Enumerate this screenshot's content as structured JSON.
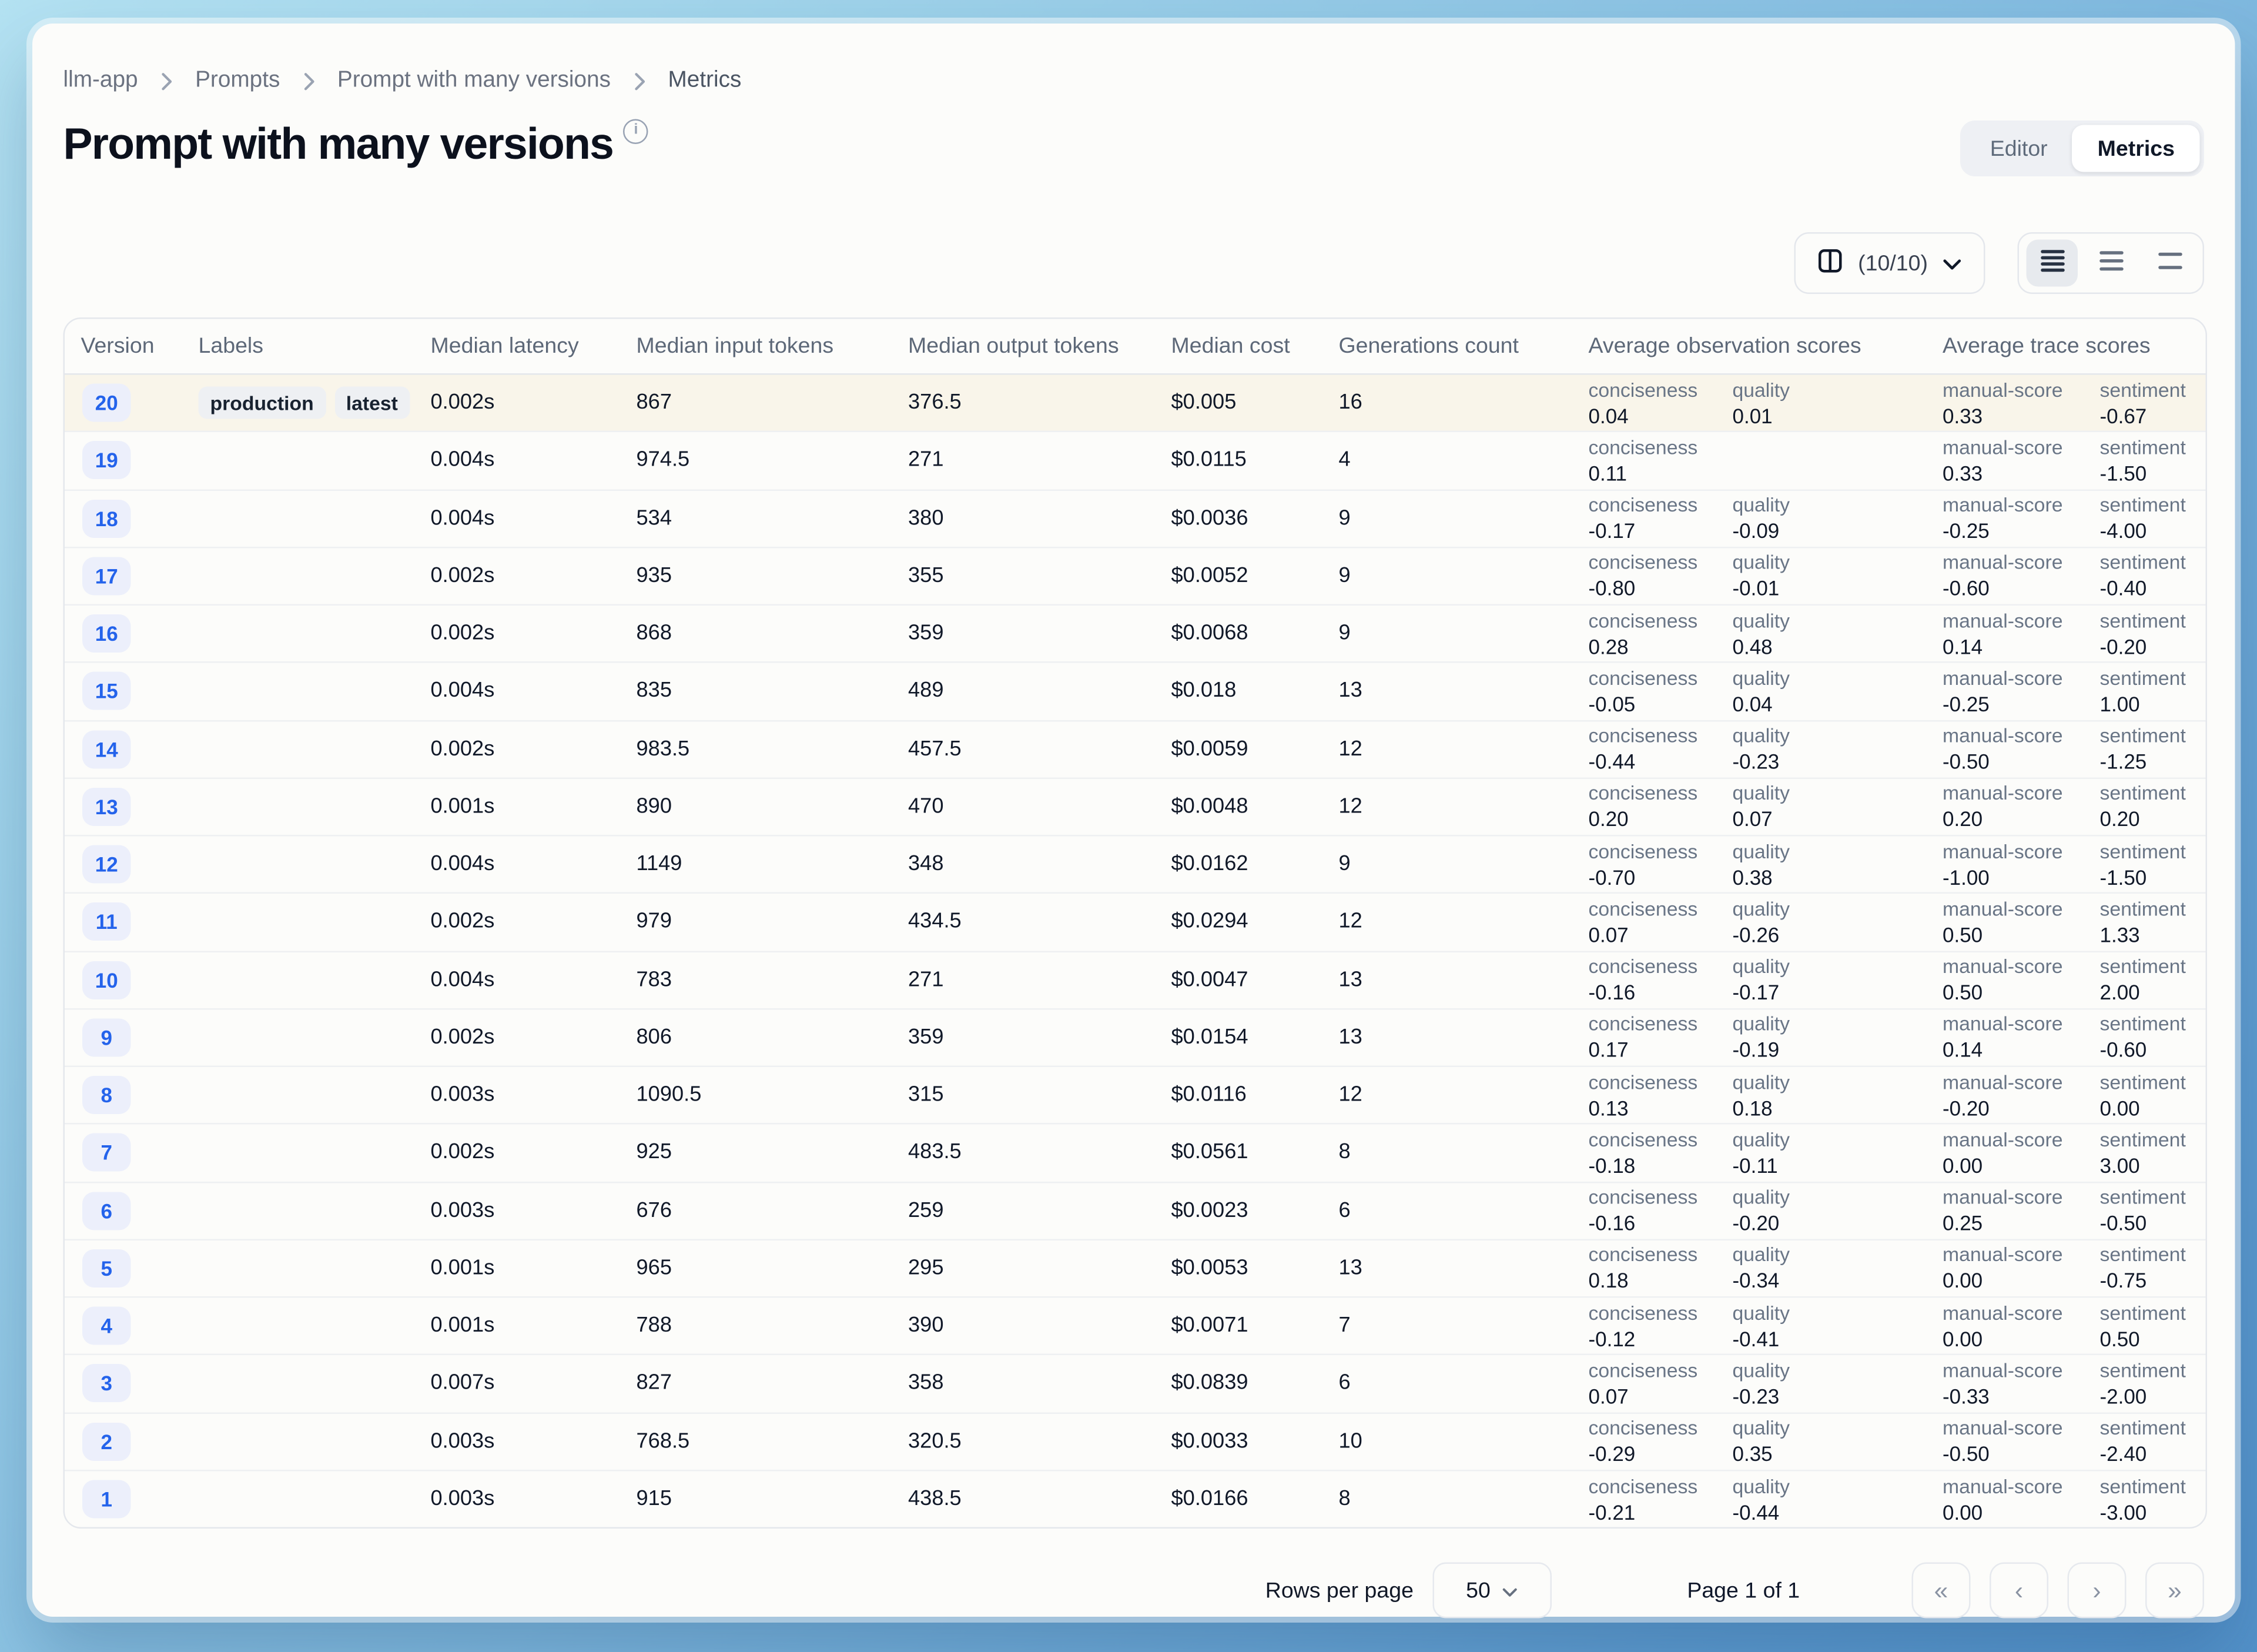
{
  "breadcrumb": {
    "items": [
      "llm-app",
      "Prompts",
      "Prompt with many versions",
      "Metrics"
    ]
  },
  "page": {
    "title": "Prompt with many versions",
    "info_icon_glyph": "i"
  },
  "view_toggle": {
    "editor": "Editor",
    "metrics": "Metrics",
    "active": "Metrics"
  },
  "toolbar": {
    "columns_label": "(10/10)",
    "columns_icon": "split-columns-icon",
    "row_height_options": [
      "small",
      "medium",
      "large"
    ],
    "row_height_active": "small"
  },
  "table": {
    "headers": {
      "version": "Version",
      "labels": "Labels",
      "latency": "Median latency",
      "input": "Median input tokens",
      "output": "Median output tokens",
      "cost": "Median cost",
      "generations": "Generations count",
      "obs": "Average observation scores",
      "trace": "Average trace scores"
    },
    "score_columns": [
      "conciseness",
      "quality",
      "manual-score",
      "sentiment"
    ],
    "rows": [
      {
        "version": "20",
        "labels": [
          "production",
          "latest"
        ],
        "latency": "0.002s",
        "input_tokens": "867",
        "output_tokens": "376.5",
        "cost": "$0.005",
        "generations": "16",
        "highlighted": true,
        "scores": {
          "conciseness": "0.04",
          "quality": "0.01",
          "manual-score": "0.33",
          "sentiment": "-0.67"
        }
      },
      {
        "version": "19",
        "labels": [],
        "latency": "0.004s",
        "input_tokens": "974.5",
        "output_tokens": "271",
        "cost": "$0.0115",
        "generations": "4",
        "scores": {
          "conciseness": "0.11",
          "quality": null,
          "manual-score": "0.33",
          "sentiment": "-1.50"
        }
      },
      {
        "version": "18",
        "labels": [],
        "latency": "0.004s",
        "input_tokens": "534",
        "output_tokens": "380",
        "cost": "$0.0036",
        "generations": "9",
        "scores": {
          "conciseness": "-0.17",
          "quality": "-0.09",
          "manual-score": "-0.25",
          "sentiment": "-4.00"
        }
      },
      {
        "version": "17",
        "labels": [],
        "latency": "0.002s",
        "input_tokens": "935",
        "output_tokens": "355",
        "cost": "$0.0052",
        "generations": "9",
        "scores": {
          "conciseness": "-0.80",
          "quality": "-0.01",
          "manual-score": "-0.60",
          "sentiment": "-0.40"
        }
      },
      {
        "version": "16",
        "labels": [],
        "latency": "0.002s",
        "input_tokens": "868",
        "output_tokens": "359",
        "cost": "$0.0068",
        "generations": "9",
        "scores": {
          "conciseness": "0.28",
          "quality": "0.48",
          "manual-score": "0.14",
          "sentiment": "-0.20"
        }
      },
      {
        "version": "15",
        "labels": [],
        "latency": "0.004s",
        "input_tokens": "835",
        "output_tokens": "489",
        "cost": "$0.018",
        "generations": "13",
        "scores": {
          "conciseness": "-0.05",
          "quality": "0.04",
          "manual-score": "-0.25",
          "sentiment": "1.00"
        }
      },
      {
        "version": "14",
        "labels": [],
        "latency": "0.002s",
        "input_tokens": "983.5",
        "output_tokens": "457.5",
        "cost": "$0.0059",
        "generations": "12",
        "scores": {
          "conciseness": "-0.44",
          "quality": "-0.23",
          "manual-score": "-0.50",
          "sentiment": "-1.25"
        }
      },
      {
        "version": "13",
        "labels": [],
        "latency": "0.001s",
        "input_tokens": "890",
        "output_tokens": "470",
        "cost": "$0.0048",
        "generations": "12",
        "scores": {
          "conciseness": "0.20",
          "quality": "0.07",
          "manual-score": "0.20",
          "sentiment": "0.20"
        }
      },
      {
        "version": "12",
        "labels": [],
        "latency": "0.004s",
        "input_tokens": "1149",
        "output_tokens": "348",
        "cost": "$0.0162",
        "generations": "9",
        "scores": {
          "conciseness": "-0.70",
          "quality": "0.38",
          "manual-score": "-1.00",
          "sentiment": "-1.50"
        }
      },
      {
        "version": "11",
        "labels": [],
        "latency": "0.002s",
        "input_tokens": "979",
        "output_tokens": "434.5",
        "cost": "$0.0294",
        "generations": "12",
        "scores": {
          "conciseness": "0.07",
          "quality": "-0.26",
          "manual-score": "0.50",
          "sentiment": "1.33"
        }
      },
      {
        "version": "10",
        "labels": [],
        "latency": "0.004s",
        "input_tokens": "783",
        "output_tokens": "271",
        "cost": "$0.0047",
        "generations": "13",
        "scores": {
          "conciseness": "-0.16",
          "quality": "-0.17",
          "manual-score": "0.50",
          "sentiment": "2.00"
        }
      },
      {
        "version": "9",
        "labels": [],
        "latency": "0.002s",
        "input_tokens": "806",
        "output_tokens": "359",
        "cost": "$0.0154",
        "generations": "13",
        "scores": {
          "conciseness": "0.17",
          "quality": "-0.19",
          "manual-score": "0.14",
          "sentiment": "-0.60"
        }
      },
      {
        "version": "8",
        "labels": [],
        "latency": "0.003s",
        "input_tokens": "1090.5",
        "output_tokens": "315",
        "cost": "$0.0116",
        "generations": "12",
        "scores": {
          "conciseness": "0.13",
          "quality": "0.18",
          "manual-score": "-0.20",
          "sentiment": "0.00"
        }
      },
      {
        "version": "7",
        "labels": [],
        "latency": "0.002s",
        "input_tokens": "925",
        "output_tokens": "483.5",
        "cost": "$0.0561",
        "generations": "8",
        "scores": {
          "conciseness": "-0.18",
          "quality": "-0.11",
          "manual-score": "0.00",
          "sentiment": "3.00"
        }
      },
      {
        "version": "6",
        "labels": [],
        "latency": "0.003s",
        "input_tokens": "676",
        "output_tokens": "259",
        "cost": "$0.0023",
        "generations": "6",
        "scores": {
          "conciseness": "-0.16",
          "quality": "-0.20",
          "manual-score": "0.25",
          "sentiment": "-0.50"
        }
      },
      {
        "version": "5",
        "labels": [],
        "latency": "0.001s",
        "input_tokens": "965",
        "output_tokens": "295",
        "cost": "$0.0053",
        "generations": "13",
        "scores": {
          "conciseness": "0.18",
          "quality": "-0.34",
          "manual-score": "0.00",
          "sentiment": "-0.75"
        }
      },
      {
        "version": "4",
        "labels": [],
        "latency": "0.001s",
        "input_tokens": "788",
        "output_tokens": "390",
        "cost": "$0.0071",
        "generations": "7",
        "scores": {
          "conciseness": "-0.12",
          "quality": "-0.41",
          "manual-score": "0.00",
          "sentiment": "0.50"
        }
      },
      {
        "version": "3",
        "labels": [],
        "latency": "0.007s",
        "input_tokens": "827",
        "output_tokens": "358",
        "cost": "$0.0839",
        "generations": "6",
        "scores": {
          "conciseness": "0.07",
          "quality": "-0.23",
          "manual-score": "-0.33",
          "sentiment": "-2.00"
        }
      },
      {
        "version": "2",
        "labels": [],
        "latency": "0.003s",
        "input_tokens": "768.5",
        "output_tokens": "320.5",
        "cost": "$0.0033",
        "generations": "10",
        "scores": {
          "conciseness": "-0.29",
          "quality": "0.35",
          "manual-score": "-0.50",
          "sentiment": "-2.40"
        }
      },
      {
        "version": "1",
        "labels": [],
        "latency": "0.003s",
        "input_tokens": "915",
        "output_tokens": "438.5",
        "cost": "$0.0166",
        "generations": "8",
        "scores": {
          "conciseness": "-0.21",
          "quality": "-0.44",
          "manual-score": "0.00",
          "sentiment": "-3.00"
        }
      }
    ]
  },
  "footer": {
    "rows_per_page_label": "Rows per page",
    "rows_per_page_value": "50",
    "page_info": "Page 1 of 1",
    "pager_icons": {
      "first": "«",
      "prev": "‹",
      "next": "›",
      "last": "»"
    }
  },
  "colors": {
    "accent_blue": "#2463eb",
    "version_badge_bg": "#eceffb",
    "label_badge_bg": "#eef0f3",
    "card_bg": "#fcfcfa",
    "table_border": "#e4e7ec",
    "header_text": "#5d6878",
    "score_label_text": "#697586",
    "bg_gradient_start": "#b4e2f2",
    "bg_gradient_end": "#5493cb",
    "production_row_highlight": "rgba(247,238,216,0.45)"
  }
}
